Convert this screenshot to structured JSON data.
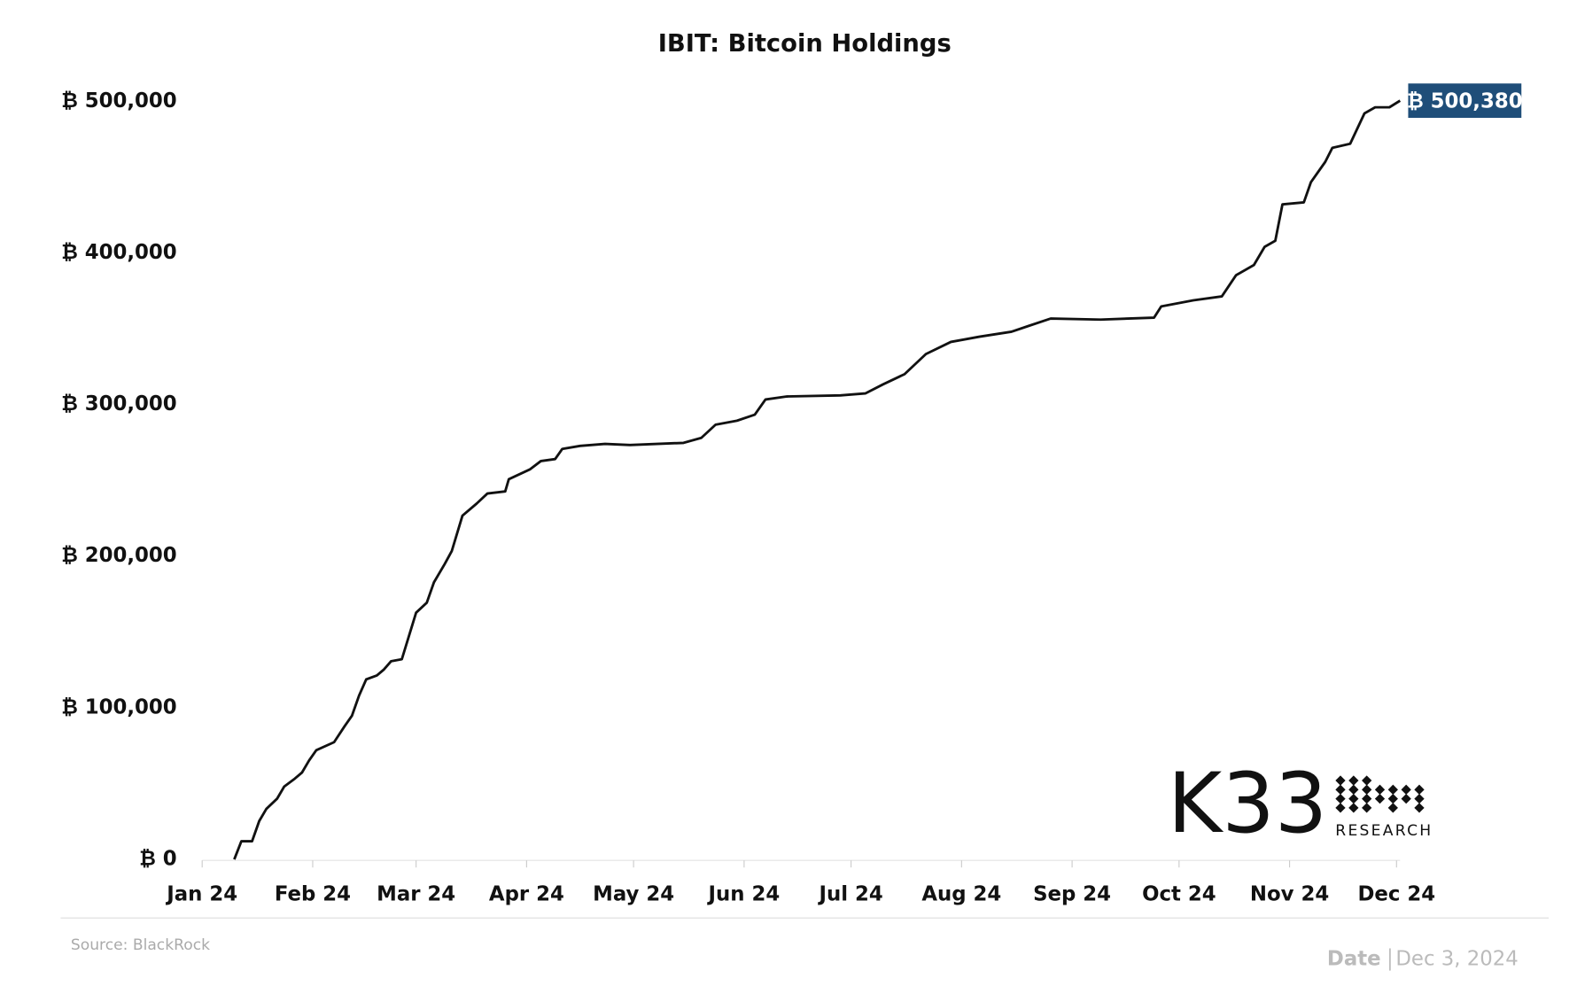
{
  "chart_data": {
    "type": "line",
    "title": "IBIT: Bitcoin Holdings",
    "color": "#111111",
    "x": [
      9,
      11,
      14,
      16,
      18,
      21,
      23,
      26,
      28,
      30,
      32,
      37,
      40,
      42,
      44,
      46,
      49,
      51,
      53,
      56,
      60,
      63,
      65,
      68,
      70,
      73,
      77,
      80,
      85,
      86,
      92,
      95,
      99,
      101,
      106,
      113,
      120,
      135,
      140,
      144,
      150,
      155,
      158,
      164,
      179,
      186,
      191,
      197,
      203,
      210,
      218,
      227,
      232,
      238,
      252,
      267,
      269,
      278,
      286,
      290,
      295,
      298,
      301,
      303,
      309,
      311,
      315,
      317,
      322,
      326,
      329,
      333,
      336
    ],
    "values": [
      0,
      12000,
      12000,
      25300,
      33300,
      40000,
      48000,
      53300,
      57300,
      65300,
      72000,
      77300,
      88000,
      94700,
      108000,
      118700,
      121300,
      125300,
      130700,
      132000,
      162700,
      169300,
      182700,
      194700,
      203300,
      226700,
      234700,
      241300,
      242700,
      250700,
      257300,
      262700,
      264000,
      270700,
      272700,
      274000,
      273300,
      274700,
      278000,
      286700,
      289300,
      293300,
      303300,
      305300,
      306000,
      307300,
      313300,
      320000,
      333300,
      341300,
      344700,
      348000,
      352000,
      356700,
      356000,
      357300,
      364700,
      368700,
      371300,
      385300,
      392000,
      404000,
      408000,
      432000,
      433300,
      446700,
      460000,
      469300,
      472000,
      492000,
      496000,
      496000,
      500380
    ],
    "xlim": [
      0,
      336
    ],
    "xticks": [
      {
        "value": 0,
        "label": "Jan 24"
      },
      {
        "value": 31,
        "label": "Feb 24"
      },
      {
        "value": 60,
        "label": "Mar 24"
      },
      {
        "value": 91,
        "label": "Apr 24"
      },
      {
        "value": 121,
        "label": "May 24"
      },
      {
        "value": 152,
        "label": "Jun 24"
      },
      {
        "value": 182,
        "label": "Jul 24"
      },
      {
        "value": 213,
        "label": "Aug 24"
      },
      {
        "value": 244,
        "label": "Sep 24"
      },
      {
        "value": 274,
        "label": "Oct 24"
      },
      {
        "value": 305,
        "label": "Nov 24"
      },
      {
        "value": 335,
        "label": "Dec 24"
      }
    ],
    "ylim": [
      0,
      500000
    ],
    "yticks": [
      {
        "value": 0,
        "label": "₿ 0"
      },
      {
        "value": 100000,
        "label": "₿ 100,000"
      },
      {
        "value": 200000,
        "label": "₿ 200,000"
      },
      {
        "value": 300000,
        "label": "₿ 300,000"
      },
      {
        "value": 400000,
        "label": "₿ 400,000"
      },
      {
        "value": 500000,
        "label": "₿ 500,000"
      }
    ],
    "annotations": [
      {
        "x": 336,
        "y": 500380,
        "label": "₿ 500,380",
        "color": "#1f4e79"
      }
    ],
    "logo": {
      "name": "K33",
      "sub": "RESEARCH"
    },
    "source": "Source:  BlackRock",
    "date_label": "Date",
    "date": "Dec 3, 2024"
  }
}
